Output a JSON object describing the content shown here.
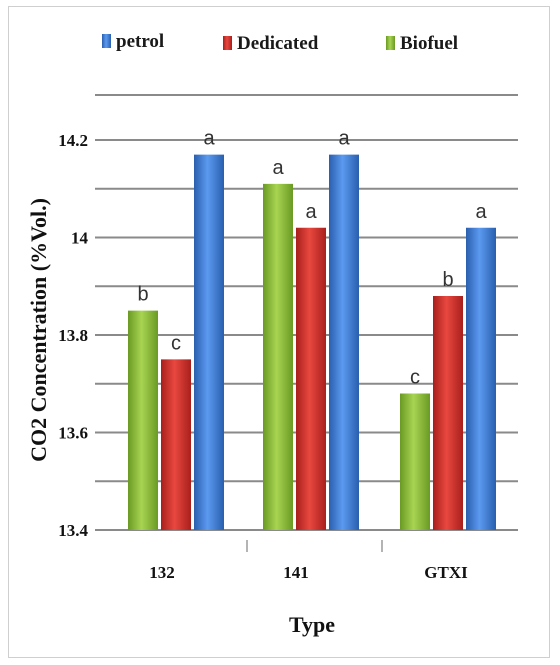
{
  "chart_data": {
    "type": "bar",
    "xlabel": "Type",
    "ylabel": "CO2  Concentration  (%Vol.)",
    "categories": [
      "132",
      "141",
      "GTXI"
    ],
    "series": [
      {
        "name": "Biofuel",
        "color": "#8fbf3a",
        "values": [
          13.85,
          14.11,
          13.68
        ],
        "labels": [
          "b",
          "a",
          "c"
        ]
      },
      {
        "name": "Dedicated",
        "color": "#d0322c",
        "values": [
          13.75,
          14.02,
          13.88
        ],
        "labels": [
          "c",
          "a",
          "b"
        ]
      },
      {
        "name": "petrol",
        "color": "#3c7fd4",
        "values": [
          14.17,
          14.17,
          14.02
        ],
        "labels": [
          "a",
          "a",
          "a"
        ]
      }
    ],
    "legend": [
      "petrol",
      "Dedicated",
      "Biofuel"
    ],
    "legend_position": "top",
    "ylim": [
      13.4,
      14.2
    ],
    "yticks": [
      "13.4",
      "13.6",
      "13.8",
      "14",
      "14.2"
    ],
    "grid": true
  }
}
